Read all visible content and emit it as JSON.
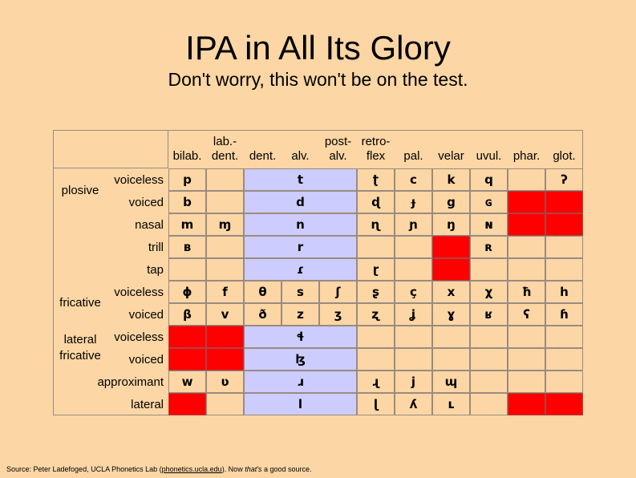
{
  "title": "IPA in All Its Glory",
  "subtitle": "Don't worry, this won't be on the test.",
  "columns": [
    {
      "l1": "",
      "l2": "bilab."
    },
    {
      "l1": "lab.-",
      "l2": "dent."
    },
    {
      "l1": "",
      "l2": "dent."
    },
    {
      "l1": "",
      "l2": "alv."
    },
    {
      "l1": "post-",
      "l2": "alv."
    },
    {
      "l1": "retro-",
      "l2": "flex"
    },
    {
      "l1": "",
      "l2": "pal."
    },
    {
      "l1": "",
      "l2": "velar"
    },
    {
      "l1": "",
      "l2": "uvul."
    },
    {
      "l1": "",
      "l2": "phar."
    },
    {
      "l1": "",
      "l2": "glot."
    }
  ],
  "groups": {
    "plosive": "plosive",
    "fricative": "fricative",
    "lateral_fricative_1": "lateral",
    "lateral_fricative_2": "fricative"
  },
  "rows": [
    {
      "label": "voiceless",
      "cells": [
        "p",
        "",
        "",
        "t",
        "",
        "ʈ",
        "c",
        "k",
        "q",
        "",
        "ʔ"
      ]
    },
    {
      "label": "voiced",
      "cells": [
        "b",
        "",
        "",
        "d",
        "",
        "ɖ",
        "ɟ",
        "g",
        "ɢ",
        "",
        ""
      ]
    },
    {
      "label": "nasal",
      "cells": [
        "m",
        "ɱ",
        "",
        "n",
        "",
        "ɳ",
        "ɲ",
        "ŋ",
        "ɴ",
        "",
        ""
      ]
    },
    {
      "label": "trill",
      "cells": [
        "ʙ",
        "",
        "",
        "r",
        "",
        "",
        "",
        "",
        "ʀ",
        "",
        ""
      ]
    },
    {
      "label": "tap",
      "cells": [
        "",
        "",
        "",
        "ɾ",
        "",
        "ɽ",
        "",
        "",
        "",
        "",
        ""
      ]
    },
    {
      "label": "voiceless",
      "cells": [
        "ɸ",
        "f",
        "θ",
        "s",
        "ʃ",
        "ʂ",
        "ç",
        "x",
        "χ",
        "ħ",
        "h"
      ]
    },
    {
      "label": "voiced",
      "cells": [
        "β",
        "v",
        "ð",
        "z",
        "ʒ",
        "ʐ",
        "ʝ",
        "ɣ",
        "ʁ",
        "ʕ",
        "ɦ"
      ]
    },
    {
      "label": "voiceless",
      "cells": [
        "",
        "",
        "",
        "ɬ",
        "",
        "",
        "",
        "",
        "",
        "",
        ""
      ]
    },
    {
      "label": "voiced",
      "cells": [
        "",
        "",
        "",
        "ɮ",
        "",
        "",
        "",
        "",
        "",
        "",
        ""
      ]
    },
    {
      "label": "approximant",
      "cells": [
        "w",
        "ʋ",
        "",
        "ɹ",
        "",
        "ɻ",
        "j",
        "ɰ",
        "",
        "",
        ""
      ]
    },
    {
      "label": "lateral",
      "cells": [
        "",
        "",
        "",
        "l",
        "",
        "ɭ",
        "ʎ",
        "ʟ",
        "",
        "",
        ""
      ]
    }
  ],
  "source": {
    "prefix": "Source: Peter Ladefoged, UCLA Phonetics Lab (",
    "link": "phonetics.ucla.edu",
    "middle": ").  Now ",
    "emph": "that's",
    "suffix": " a good source."
  },
  "colors": {
    "background": "#fcd6a4",
    "coronal_band": "#ccccff",
    "impossible": "#ff0000"
  }
}
